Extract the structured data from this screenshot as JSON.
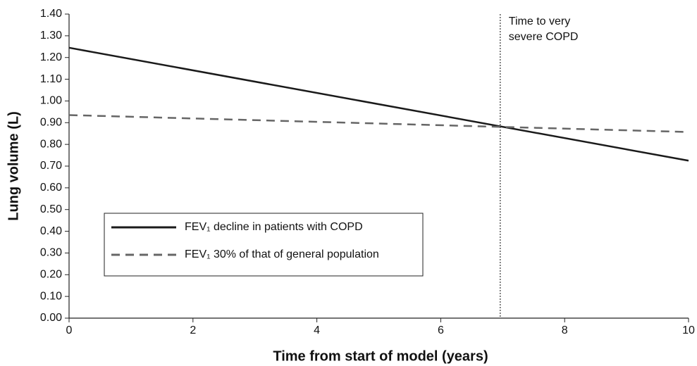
{
  "chart_data": {
    "type": "line",
    "x_label": "Time from start of model (years)",
    "y_label": "Lung volume (L)",
    "x": [
      0,
      10
    ],
    "series": [
      {
        "name": "FEV₁ decline in patients with COPD",
        "color": "#1a1a1a",
        "dash": "solid",
        "values": [
          1.245,
          0.725
        ]
      },
      {
        "name": "FEV₁ 30% of that of general population",
        "color": "#666666",
        "dash": "dashed",
        "values": [
          0.935,
          0.857
        ]
      }
    ],
    "vline": {
      "x": 6.96,
      "label": [
        "Time to very",
        "severe COPD"
      ]
    },
    "xlim": [
      0,
      10
    ],
    "xticks": [
      0,
      2,
      4,
      6,
      8,
      10
    ],
    "ylim": [
      0,
      1.4
    ],
    "yticks": [
      {
        "value": 0,
        "label": "0.00"
      },
      {
        "value": 0.1,
        "label": "0.10"
      },
      {
        "value": 0.2,
        "label": "0.20"
      },
      {
        "value": 0.3,
        "label": "0.30"
      },
      {
        "value": 0.4,
        "label": "0.40"
      },
      {
        "value": 0.5,
        "label": "0.50"
      },
      {
        "value": 0.6,
        "label": "0.60"
      },
      {
        "value": 0.7,
        "label": "0.70"
      },
      {
        "value": 0.8,
        "label": "0.80"
      },
      {
        "value": 0.9,
        "label": "0.90"
      },
      {
        "value": 1.0,
        "label": "1.00"
      },
      {
        "value": 1.1,
        "label": "1.10"
      },
      {
        "value": 1.2,
        "label": "1.20"
      },
      {
        "value": 1.3,
        "label": "1.30"
      },
      {
        "value": 1.4,
        "label": "1.40"
      }
    ],
    "grid": false,
    "legend_position": "lower left"
  }
}
